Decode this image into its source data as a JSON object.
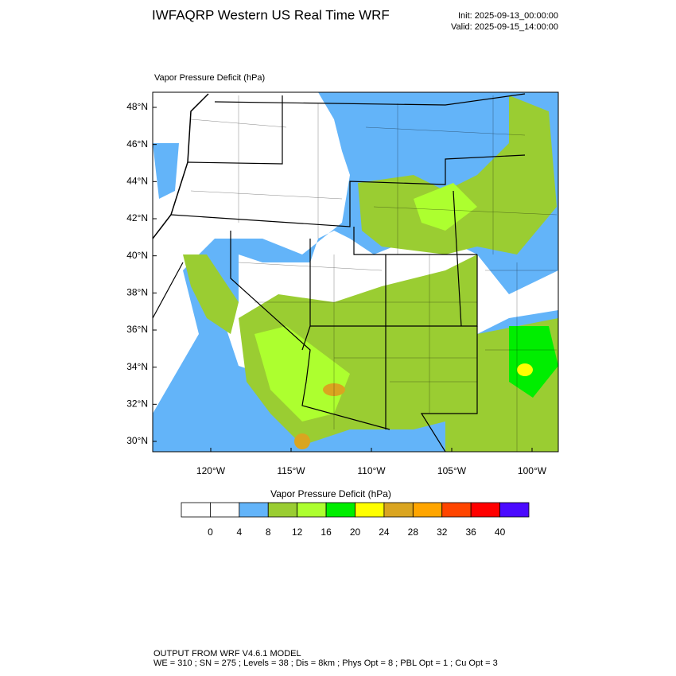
{
  "header": {
    "title": "IWFAQRP Western US Real Time WRF",
    "init": "Init: 2025-09-13_00:00:00",
    "valid": "Valid: 2025-09-15_14:00:00"
  },
  "map": {
    "label": "Vapor Pressure Deficit   (hPa)",
    "lat_ticks": [
      {
        "value": 48,
        "label": "48°N"
      },
      {
        "value": 46,
        "label": "46°N"
      },
      {
        "value": 44,
        "label": "44°N"
      },
      {
        "value": 42,
        "label": "42°N"
      },
      {
        "value": 40,
        "label": "40°N"
      },
      {
        "value": 38,
        "label": "38°N"
      },
      {
        "value": 36,
        "label": "36°N"
      },
      {
        "value": 34,
        "label": "34°N"
      },
      {
        "value": 32,
        "label": "32°N"
      },
      {
        "value": 30,
        "label": "30°N"
      }
    ],
    "lon_ticks": [
      {
        "value": -120,
        "label": "120°W"
      },
      {
        "value": -115,
        "label": "115°W"
      },
      {
        "value": -110,
        "label": "110°W"
      },
      {
        "value": -105,
        "label": "105°W"
      },
      {
        "value": -100,
        "label": "100°W"
      }
    ]
  },
  "colorbar": {
    "title": "Vapor Pressure Deficit  (hPa)",
    "levels": [
      0,
      4,
      8,
      12,
      16,
      20,
      24,
      28,
      32,
      36,
      40
    ],
    "colors": [
      "#ffffff",
      "#ffffff",
      "#63b4f9",
      "#9acd32",
      "#adff2f",
      "#00ee00",
      "#ffff00",
      "#daa520",
      "#ffa500",
      "#ff4500",
      "#ff0000",
      "#4b0aff"
    ]
  },
  "footer": {
    "line1": "OUTPUT FROM WRF V4.6.1 MODEL",
    "line2": "WE = 310 ; SN = 275 ; Levels = 38 ; Dis = 8km ; Phys Opt = 8 ; PBL Opt = 1 ; Cu Opt = 3"
  }
}
